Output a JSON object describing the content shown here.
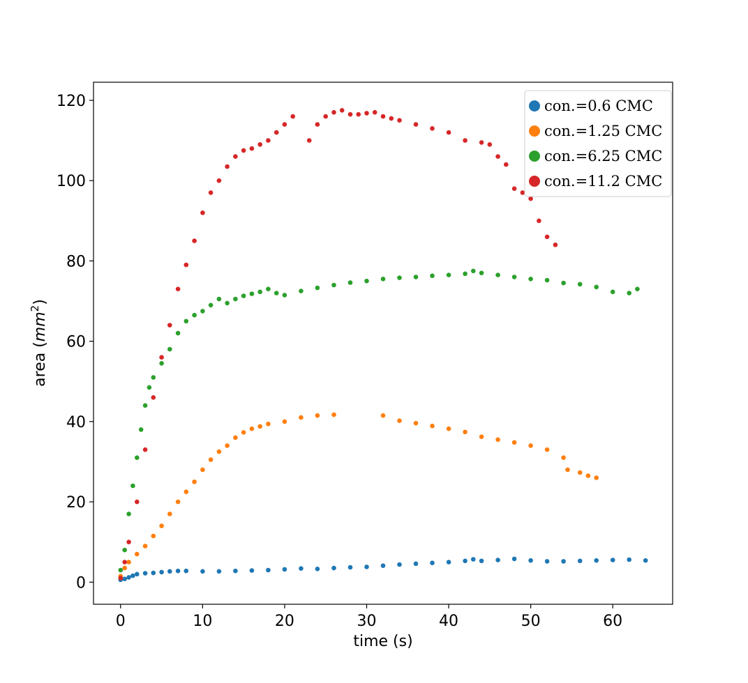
{
  "chart_data": {
    "type": "scatter",
    "xlabel": "time (s)",
    "ylabel_main": "area (",
    "ylabel_unit": "mm",
    "ylabel_exp": "2",
    "ylabel_close": ")",
    "xlim": [
      -3.3,
      67.3
    ],
    "ylim": [
      -5.5,
      124.5
    ],
    "x_ticks": [
      0,
      10,
      20,
      30,
      40,
      50,
      60
    ],
    "x_tick_labels": [
      "0",
      "10",
      "20",
      "30",
      "40",
      "50",
      "60"
    ],
    "y_ticks": [
      0,
      20,
      40,
      60,
      80,
      100,
      120
    ],
    "y_tick_labels": [
      "0",
      "20",
      "40",
      "60",
      "80",
      "100",
      "120"
    ],
    "grid": false,
    "legend_position": "top-right",
    "series": [
      {
        "name": "con.=0.6 CMC",
        "color": "#1f77b4",
        "points": [
          [
            0,
            0.6
          ],
          [
            0.5,
            0.8
          ],
          [
            1,
            1.2
          ],
          [
            1.5,
            1.6
          ],
          [
            2,
            2.0
          ],
          [
            3,
            2.2
          ],
          [
            4,
            2.3
          ],
          [
            5,
            2.5
          ],
          [
            6,
            2.7
          ],
          [
            7,
            2.8
          ],
          [
            8,
            2.8
          ],
          [
            10,
            2.7
          ],
          [
            12,
            2.7
          ],
          [
            14,
            2.8
          ],
          [
            16,
            2.9
          ],
          [
            18,
            3.0
          ],
          [
            20,
            3.2
          ],
          [
            22,
            3.4
          ],
          [
            24,
            3.3
          ],
          [
            26,
            3.5
          ],
          [
            28,
            3.7
          ],
          [
            30,
            3.8
          ],
          [
            32,
            4.1
          ],
          [
            34,
            4.4
          ],
          [
            36,
            4.6
          ],
          [
            38,
            4.8
          ],
          [
            40,
            5.0
          ],
          [
            42,
            5.3
          ],
          [
            43,
            5.7
          ],
          [
            44,
            5.3
          ],
          [
            46,
            5.5
          ],
          [
            48,
            5.8
          ],
          [
            50,
            5.4
          ],
          [
            52,
            5.2
          ],
          [
            54,
            5.2
          ],
          [
            56,
            5.3
          ],
          [
            58,
            5.4
          ],
          [
            60,
            5.5
          ],
          [
            62,
            5.6
          ],
          [
            64,
            5.4
          ]
        ]
      },
      {
        "name": "con.=1.25 CMC",
        "color": "#ff7f0e",
        "points": [
          [
            0,
            1.5
          ],
          [
            0.5,
            3.5
          ],
          [
            1,
            5
          ],
          [
            2,
            7
          ],
          [
            3,
            9
          ],
          [
            4,
            11.5
          ],
          [
            5,
            14
          ],
          [
            6,
            17
          ],
          [
            7,
            20
          ],
          [
            8,
            22.5
          ],
          [
            9,
            25
          ],
          [
            10,
            28
          ],
          [
            11,
            30.5
          ],
          [
            12,
            32.5
          ],
          [
            13,
            34
          ],
          [
            14,
            36
          ],
          [
            15,
            37.3
          ],
          [
            16,
            38.2
          ],
          [
            17,
            38.8
          ],
          [
            18,
            39.4
          ],
          [
            20,
            40.0
          ],
          [
            22,
            41.0
          ],
          [
            24,
            41.5
          ],
          [
            26,
            41.7
          ],
          [
            32,
            41.5
          ],
          [
            34,
            40.2
          ],
          [
            36,
            39.6
          ],
          [
            38,
            38.9
          ],
          [
            40,
            38.2
          ],
          [
            42,
            37.4
          ],
          [
            44,
            36.2
          ],
          [
            46,
            35.5
          ],
          [
            48,
            34.8
          ],
          [
            50,
            34
          ],
          [
            52,
            33
          ],
          [
            54,
            31
          ],
          [
            54.5,
            28
          ],
          [
            56,
            27.3
          ],
          [
            57,
            26.5
          ],
          [
            58,
            26
          ]
        ]
      },
      {
        "name": "con.=6.25 CMC",
        "color": "#2ca02c",
        "points": [
          [
            0,
            3
          ],
          [
            0.5,
            8
          ],
          [
            1,
            17
          ],
          [
            1.5,
            24
          ],
          [
            2,
            31
          ],
          [
            2.5,
            38
          ],
          [
            3,
            44
          ],
          [
            3.5,
            48.5
          ],
          [
            4,
            51
          ],
          [
            5,
            54.5
          ],
          [
            6,
            58
          ],
          [
            7,
            62
          ],
          [
            8,
            65
          ],
          [
            9,
            66.5
          ],
          [
            10,
            67.5
          ],
          [
            11,
            69
          ],
          [
            12,
            70.5
          ],
          [
            13,
            69.5
          ],
          [
            14,
            70.5
          ],
          [
            15,
            71.3
          ],
          [
            16,
            71.8
          ],
          [
            17,
            72.3
          ],
          [
            18,
            73
          ],
          [
            19,
            72
          ],
          [
            20,
            71.5
          ],
          [
            22,
            72.5
          ],
          [
            24,
            73.3
          ],
          [
            26,
            74
          ],
          [
            28,
            74.6
          ],
          [
            30,
            75
          ],
          [
            32,
            75.5
          ],
          [
            34,
            75.8
          ],
          [
            36,
            76
          ],
          [
            38,
            76.3
          ],
          [
            40,
            76.5
          ],
          [
            42,
            76.8
          ],
          [
            43,
            77.5
          ],
          [
            44,
            77
          ],
          [
            46,
            76.5
          ],
          [
            48,
            76
          ],
          [
            50,
            75.5
          ],
          [
            52,
            75.2
          ],
          [
            54,
            74.5
          ],
          [
            56,
            74.2
          ],
          [
            58,
            73.5
          ],
          [
            60,
            72.3
          ],
          [
            62,
            72
          ],
          [
            63,
            73
          ]
        ]
      },
      {
        "name": "con.=11.2 CMC",
        "color": "#d62728",
        "points": [
          [
            0,
            1
          ],
          [
            0.5,
            5
          ],
          [
            1,
            10
          ],
          [
            2,
            20
          ],
          [
            3,
            33
          ],
          [
            4,
            46
          ],
          [
            5,
            56
          ],
          [
            6,
            64
          ],
          [
            7,
            73
          ],
          [
            8,
            79
          ],
          [
            9,
            85
          ],
          [
            10,
            92
          ],
          [
            11,
            97
          ],
          [
            12,
            100
          ],
          [
            13,
            103.5
          ],
          [
            14,
            106
          ],
          [
            15,
            107.5
          ],
          [
            16,
            108
          ],
          [
            17,
            109
          ],
          [
            18,
            110
          ],
          [
            19,
            112
          ],
          [
            20,
            114
          ],
          [
            21,
            116
          ],
          [
            23,
            110
          ],
          [
            24,
            114
          ],
          [
            25,
            116
          ],
          [
            26,
            117
          ],
          [
            27,
            117.5
          ],
          [
            28,
            116.5
          ],
          [
            29,
            116.5
          ],
          [
            30,
            116.8
          ],
          [
            31,
            117
          ],
          [
            32,
            116
          ],
          [
            33,
            115.5
          ],
          [
            34,
            115
          ],
          [
            36,
            114
          ],
          [
            38,
            113
          ],
          [
            40,
            112
          ],
          [
            42,
            110
          ],
          [
            44,
            109.5
          ],
          [
            45,
            109
          ],
          [
            46,
            106
          ],
          [
            47,
            104
          ],
          [
            48,
            98
          ],
          [
            49,
            97
          ],
          [
            50,
            95.5
          ],
          [
            51,
            90
          ],
          [
            52,
            86
          ],
          [
            53,
            84
          ]
        ]
      }
    ]
  }
}
